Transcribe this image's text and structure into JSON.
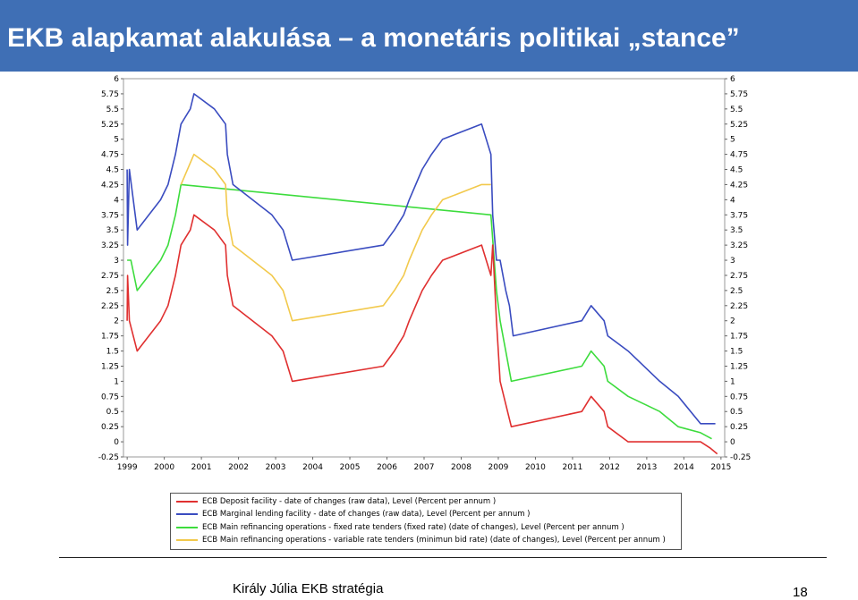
{
  "header": {
    "title": "EKB alapkamat alakulása – a monetáris politikai „stance”"
  },
  "footer": {
    "author": "Király Júlia EKB stratégia",
    "page_number": "18"
  },
  "chart_data": {
    "type": "line",
    "title": "",
    "xlabel": "",
    "ylabel": "",
    "xlim": [
      1998.9,
      2015.1
    ],
    "ylim": [
      -0.25,
      6
    ],
    "x_ticks": [
      "1999",
      "2000",
      "2001",
      "2002",
      "2003",
      "2004",
      "2005",
      "2006",
      "2007",
      "2008",
      "2009",
      "2010",
      "2011",
      "2012",
      "2013",
      "2014",
      "2015"
    ],
    "y_ticks": [
      "-0.25",
      "0",
      "0.25",
      "0.5",
      "0.75",
      "1",
      "1.25",
      "1.5",
      "1.75",
      "2",
      "2.25",
      "2.5",
      "2.75",
      "3",
      "3.25",
      "3.5",
      "3.75",
      "4",
      "4.25",
      "4.5",
      "4.75",
      "5",
      "5.25",
      "5.5",
      "5.75",
      "6"
    ],
    "grid": false,
    "legend_position": "bottom",
    "series": [
      {
        "name": "ECB Deposit facility - date of changes (raw data), Level (Percent per annum )",
        "color": "#e03030",
        "points": [
          [
            1999.0,
            2.0
          ],
          [
            1999.01,
            2.75
          ],
          [
            1999.06,
            2.0
          ],
          [
            1999.27,
            1.5
          ],
          [
            1999.9,
            2.0
          ],
          [
            2000.1,
            2.25
          ],
          [
            2000.3,
            2.75
          ],
          [
            2000.45,
            3.25
          ],
          [
            2000.7,
            3.5
          ],
          [
            2000.8,
            3.75
          ],
          [
            2001.35,
            3.5
          ],
          [
            2001.65,
            3.25
          ],
          [
            2001.7,
            2.75
          ],
          [
            2001.85,
            2.25
          ],
          [
            2002.9,
            1.75
          ],
          [
            2003.2,
            1.5
          ],
          [
            2003.45,
            1.0
          ],
          [
            2005.9,
            1.25
          ],
          [
            2006.2,
            1.5
          ],
          [
            2006.45,
            1.75
          ],
          [
            2006.6,
            2.0
          ],
          [
            2006.95,
            2.5
          ],
          [
            2007.2,
            2.75
          ],
          [
            2007.5,
            3.0
          ],
          [
            2008.55,
            3.25
          ],
          [
            2008.8,
            2.75
          ],
          [
            2008.85,
            3.25
          ],
          [
            2008.95,
            2.0
          ],
          [
            2009.05,
            1.0
          ],
          [
            2009.25,
            0.5
          ],
          [
            2009.35,
            0.25
          ],
          [
            2011.25,
            0.5
          ],
          [
            2011.5,
            0.75
          ],
          [
            2011.85,
            0.5
          ],
          [
            2011.95,
            0.25
          ],
          [
            2012.5,
            0.0
          ],
          [
            2014.45,
            0.0
          ],
          [
            2014.7,
            -0.1
          ],
          [
            2014.9,
            -0.2
          ]
        ]
      },
      {
        "name": "ECB Marginal lending facility - date of changes (raw data), Level (Percent per annum )",
        "color": "#3a4cc0",
        "points": [
          [
            1999.0,
            4.5
          ],
          [
            1999.01,
            3.25
          ],
          [
            1999.06,
            4.5
          ],
          [
            1999.27,
            3.5
          ],
          [
            1999.9,
            4.0
          ],
          [
            2000.1,
            4.25
          ],
          [
            2000.3,
            4.75
          ],
          [
            2000.45,
            5.25
          ],
          [
            2000.7,
            5.5
          ],
          [
            2000.8,
            5.75
          ],
          [
            2001.35,
            5.5
          ],
          [
            2001.65,
            5.25
          ],
          [
            2001.7,
            4.75
          ],
          [
            2001.85,
            4.25
          ],
          [
            2002.9,
            3.75
          ],
          [
            2003.2,
            3.5
          ],
          [
            2003.45,
            3.0
          ],
          [
            2005.9,
            3.25
          ],
          [
            2006.2,
            3.5
          ],
          [
            2006.45,
            3.75
          ],
          [
            2006.6,
            4.0
          ],
          [
            2006.95,
            4.5
          ],
          [
            2007.2,
            4.75
          ],
          [
            2007.5,
            5.0
          ],
          [
            2008.55,
            5.25
          ],
          [
            2008.8,
            4.75
          ],
          [
            2008.85,
            3.75
          ],
          [
            2008.95,
            3.0
          ],
          [
            2009.05,
            3.0
          ],
          [
            2009.2,
            2.5
          ],
          [
            2009.3,
            2.25
          ],
          [
            2009.4,
            1.75
          ],
          [
            2011.25,
            2.0
          ],
          [
            2011.5,
            2.25
          ],
          [
            2011.85,
            2.0
          ],
          [
            2011.95,
            1.75
          ],
          [
            2012.5,
            1.5
          ],
          [
            2013.35,
            1.0
          ],
          [
            2013.85,
            0.75
          ],
          [
            2014.45,
            0.3
          ],
          [
            2014.7,
            0.3
          ],
          [
            2014.85,
            0.3
          ]
        ]
      },
      {
        "name": "ECB Main refinancing operations - fixed rate tenders (fixed rate) (date of changes), Level (Percent per annum )",
        "color": "#3ddc3d",
        "points": [
          [
            1999.0,
            3.0
          ],
          [
            1999.1,
            3.0
          ],
          [
            1999.27,
            2.5
          ],
          [
            1999.9,
            3.0
          ],
          [
            2000.1,
            3.25
          ],
          [
            2000.3,
            3.75
          ],
          [
            2000.45,
            4.25
          ],
          [
            2008.8,
            3.75
          ],
          [
            2008.95,
            2.5
          ],
          [
            2009.05,
            2.0
          ],
          [
            2009.2,
            1.5
          ],
          [
            2009.35,
            1.0
          ],
          [
            2011.25,
            1.25
          ],
          [
            2011.5,
            1.5
          ],
          [
            2011.85,
            1.25
          ],
          [
            2011.95,
            1.0
          ],
          [
            2012.5,
            0.75
          ],
          [
            2013.35,
            0.5
          ],
          [
            2013.85,
            0.25
          ],
          [
            2014.45,
            0.15
          ],
          [
            2014.75,
            0.05
          ]
        ]
      },
      {
        "name": "ECB Main refinancing operations - variable rate tenders (minimun bid rate) (date of changes), Level (Percent per annum )",
        "color": "#f2c94c",
        "points": [
          [
            2000.45,
            4.25
          ],
          [
            2000.8,
            4.75
          ],
          [
            2001.35,
            4.5
          ],
          [
            2001.65,
            4.25
          ],
          [
            2001.7,
            3.75
          ],
          [
            2001.85,
            3.25
          ],
          [
            2002.9,
            2.75
          ],
          [
            2003.2,
            2.5
          ],
          [
            2003.45,
            2.0
          ],
          [
            2005.9,
            2.25
          ],
          [
            2006.2,
            2.5
          ],
          [
            2006.45,
            2.75
          ],
          [
            2006.6,
            3.0
          ],
          [
            2006.95,
            3.5
          ],
          [
            2007.2,
            3.75
          ],
          [
            2007.5,
            4.0
          ],
          [
            2008.55,
            4.25
          ],
          [
            2008.8,
            4.25
          ]
        ]
      }
    ]
  }
}
